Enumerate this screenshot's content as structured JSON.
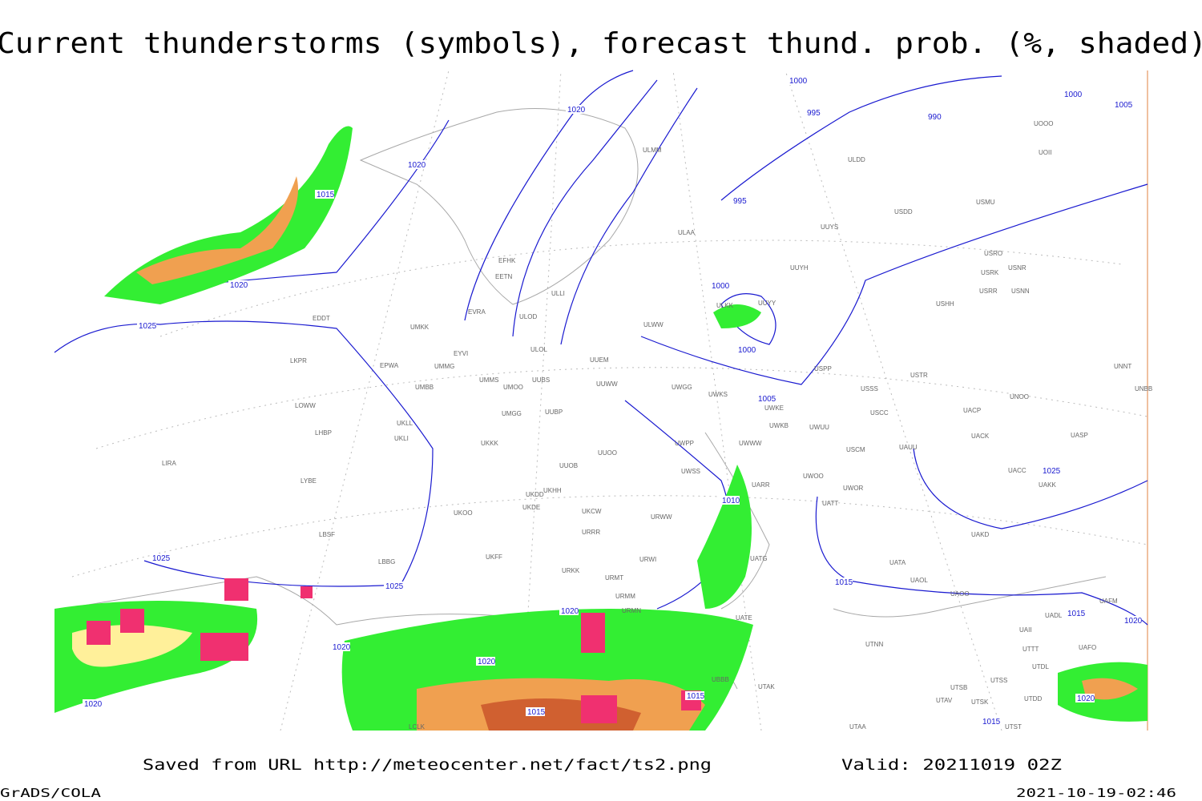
{
  "header": {
    "title": "Current thunderstorms (symbols), forecast thund. prob. (%, shaded)"
  },
  "map": {
    "isobar_labels": [
      "1000",
      "995",
      "990",
      "1000",
      "1005",
      "1020",
      "1020",
      "1015",
      "995",
      "1020",
      "1025",
      "1000",
      "1000",
      "1005",
      "1010",
      "1025",
      "1015",
      "1025",
      "1025",
      "1020",
      "1015",
      "1020",
      "1020",
      "1020",
      "1015",
      "1015",
      "1020",
      "1020",
      "1015"
    ],
    "stations": [
      "EDDT",
      "UMKK",
      "EYVI",
      "UMMG",
      "EPWA",
      "LKPR",
      "UMBB",
      "EVRA",
      "ULOD",
      "ULOL",
      "EFHK",
      "EETN",
      "ULLI",
      "UUEM",
      "UUWW",
      "ULWW",
      "UMMS",
      "UMOO",
      "UUBS",
      "UMGG",
      "UUBP",
      "UWGG",
      "UWKS",
      "UWKE",
      "UWKB",
      "UWUU",
      "UWPP",
      "UWWW",
      "UWSS",
      "UUOO",
      "UUOB",
      "UKKK",
      "UKLL",
      "UKLI",
      "LOWW",
      "LHBP",
      "LIRA",
      "LYBE",
      "UKHH",
      "UKDD",
      "UKDE",
      "UKOO",
      "UKCW",
      "URWW",
      "UARR",
      "UWOO",
      "UWOR",
      "UATT",
      "URRR",
      "LBSF",
      "LBBG",
      "UKFF",
      "URKK",
      "URMT",
      "URMM",
      "URMN",
      "URWI",
      "UATG",
      "UATE",
      "UAKD",
      "UATA",
      "UAOL",
      "UACC",
      "UAKK",
      "UASP",
      "UACK",
      "UAUU",
      "USCM",
      "USCC",
      "UNOO",
      "USSS",
      "USTR",
      "USPP",
      "UNNT",
      "UNBB",
      "USHH",
      "USRR",
      "USNN",
      "USRK",
      "USNR",
      "USRO",
      "UUYH",
      "UUYY",
      "ULKK",
      "ULAA",
      "UUYS",
      "USDD",
      "USMU",
      "ULDD",
      "ULMM",
      "UOOO",
      "UOII",
      "UACP",
      "UAOO",
      "UAFM",
      "UADL",
      "UAII",
      "UTTT",
      "UAFO",
      "UTDL",
      "UTSS",
      "UTSB",
      "UTAK",
      "UTAV",
      "UTSK",
      "UTDD",
      "UTST",
      "UTAA",
      "UBBB",
      "UTNN",
      "LCLK"
    ]
  },
  "footer": {
    "source": "Saved from URL http://meteocenter.net/fact/ts2.png",
    "valid": "Valid: 20211019 02Z",
    "software": "GrADS/COLA",
    "timestamp": "2021-10-19-02:46"
  }
}
